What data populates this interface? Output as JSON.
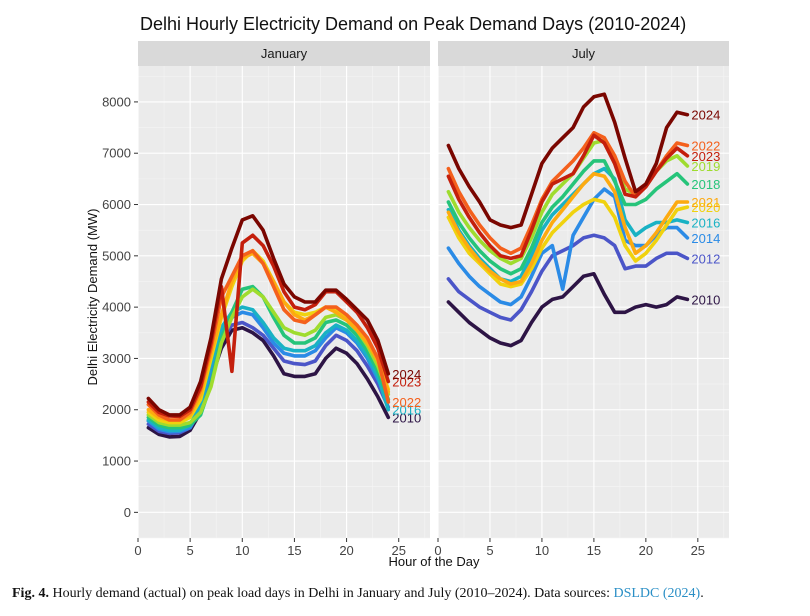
{
  "chart_data": {
    "type": "line",
    "title": "Delhi Hourly Electricity Demand on Peak Demand Days (2010-2024)",
    "xlabel": "Hour of the Day",
    "ylabel": "Delhi Electricity Demand (MW)",
    "xlim": [
      0,
      28
    ],
    "ylim": [
      -500,
      8700
    ],
    "x_ticks": [
      0,
      5,
      10,
      15,
      20,
      25
    ],
    "y_ticks": [
      0,
      1000,
      2000,
      3000,
      4000,
      5000,
      6000,
      7000,
      8000
    ],
    "x": [
      1,
      2,
      3,
      4,
      5,
      6,
      7,
      8,
      9,
      10,
      11,
      12,
      13,
      14,
      15,
      16,
      17,
      18,
      19,
      20,
      21,
      22,
      23,
      24
    ],
    "colors": {
      "2010": "#2d1445",
      "2012": "#4b55c8",
      "2014": "#2b8be6",
      "2016": "#19b2c4",
      "2018": "#26c47a",
      "2019": "#9fdc2e",
      "2020": "#f0d20e",
      "2021": "#fdaa10",
      "2022": "#f4601c",
      "2023": "#c41f0c",
      "2024": "#7a0600"
    },
    "panels": [
      {
        "name": "January",
        "series": [
          {
            "name": "2010",
            "label": "2010",
            "values": [
              1650,
              1520,
              1470,
              1480,
              1600,
              1950,
              2600,
              3200,
              3550,
              3600,
              3500,
              3350,
              3050,
              2700,
              2650,
              2650,
              2700,
              3000,
              3200,
              3100,
              2900,
              2600,
              2250,
              1850
            ]
          },
          {
            "name": "2012",
            "label": "",
            "values": [
              1720,
              1580,
              1540,
              1550,
              1650,
              2050,
              2750,
              3350,
              3650,
              3700,
              3600,
              3450,
              3200,
              2950,
              2900,
              2880,
              2950,
              3250,
              3450,
              3350,
              3150,
              2850,
              2500,
              2050
            ]
          },
          {
            "name": "2014",
            "label": "",
            "values": [
              1780,
              1620,
              1570,
              1580,
              1650,
              2000,
              2800,
              3500,
              3800,
              3900,
              3850,
              3600,
              3300,
              3100,
              3050,
              3050,
              3150,
              3400,
              3600,
              3500,
              3300,
              3000,
              2600,
              2150
            ]
          },
          {
            "name": "2016",
            "label": "2016",
            "values": [
              1800,
              1650,
              1600,
              1600,
              1700,
              2100,
              2900,
              3600,
              3900,
              4000,
              3950,
              3700,
              3400,
              3200,
              3150,
              3150,
              3250,
              3500,
              3650,
              3550,
              3350,
              3050,
              2650,
              2000
            ]
          },
          {
            "name": "2018",
            "label": "",
            "values": [
              1850,
              1700,
              1650,
              1650,
              1700,
              1900,
              2500,
              3400,
              3900,
              4350,
              4400,
              4200,
              3800,
              3450,
              3300,
              3300,
              3400,
              3700,
              3750,
              3650,
              3450,
              3150,
              2750,
              2200
            ]
          },
          {
            "name": "2019",
            "label": "",
            "values": [
              1900,
              1750,
              1700,
              1700,
              1750,
              1950,
              2450,
              3300,
              3800,
              4200,
              4350,
              4200,
              3900,
              3600,
              3500,
              3450,
              3550,
              3800,
              3850,
              3750,
              3550,
              3250,
              2850,
              2300
            ]
          },
          {
            "name": "2020",
            "label": "",
            "values": [
              1950,
              1800,
              1750,
              1750,
              1850,
              2200,
              3000,
              3800,
              4400,
              4900,
              5100,
              4900,
              4500,
              4100,
              3900,
              3850,
              3900,
              4000,
              3950,
              3800,
              3600,
              3350,
              2950,
              2400
            ]
          },
          {
            "name": "2021",
            "label": "",
            "values": [
              2000,
              1850,
              1800,
              1800,
              1900,
              2300,
              3100,
              3850,
              4500,
              4950,
              5050,
              4850,
              4500,
              4100,
              3850,
              3750,
              3850,
              4000,
              3900,
              3750,
              3550,
              3300,
              2950,
              2350
            ]
          },
          {
            "name": "2022",
            "label": "2022",
            "values": [
              2100,
              1900,
              1800,
              1800,
              1950,
              2400,
              3200,
              4200,
              4600,
              5000,
              5100,
              4850,
              4400,
              3950,
              3750,
              3700,
              3850,
              4000,
              4000,
              3850,
              3650,
              3400,
              3000,
              2150
            ]
          },
          {
            "name": "2023",
            "label": "2023",
            "values": [
              2150,
              1950,
              1880,
              1870,
              2000,
              2450,
              3300,
              4400,
              2750,
              5250,
              5400,
              5200,
              4800,
              4300,
              4000,
              3950,
              4050,
              4300,
              4300,
              4100,
              3900,
              3600,
              3200,
              2550
            ]
          },
          {
            "name": "2024",
            "label": "2024",
            "values": [
              2220,
              2000,
              1900,
              1900,
              2050,
              2550,
              3400,
              4550,
              5150,
              5700,
              5780,
              5500,
              4950,
              4450,
              4200,
              4100,
              4100,
              4330,
              4330,
              4150,
              3950,
              3750,
              3350,
              2700
            ]
          }
        ]
      },
      {
        "name": "July",
        "series": [
          {
            "name": "2010",
            "label": "2010",
            "values": [
              4100,
              3900,
              3700,
              3550,
              3400,
              3300,
              3250,
              3350,
              3700,
              4000,
              4150,
              4200,
              4400,
              4600,
              4650,
              4250,
              3900,
              3900,
              4000,
              4050,
              4000,
              4050,
              4200,
              4150
            ]
          },
          {
            "name": "2012",
            "label": "2012",
            "values": [
              4550,
              4300,
              4150,
              4000,
              3900,
              3800,
              3750,
              3950,
              4300,
              4700,
              5000,
              5100,
              5200,
              5350,
              5400,
              5350,
              5200,
              4750,
              4800,
              4800,
              4950,
              5050,
              5050,
              4950
            ]
          },
          {
            "name": "2014",
            "label": "2014",
            "values": [
              5150,
              4850,
              4600,
              4400,
              4250,
              4100,
              4050,
              4200,
              4600,
              5050,
              5200,
              4350,
              5400,
              5750,
              6100,
              6300,
              6150,
              5300,
              5200,
              5200,
              5400,
              5550,
              5550,
              5350
            ]
          },
          {
            "name": "2016",
            "label": "2016",
            "values": [
              5900,
              5500,
              5200,
              4950,
              4750,
              4550,
              4500,
              4600,
              5000,
              5500,
              5800,
              6000,
              6200,
              6400,
              6600,
              6700,
              6500,
              5700,
              5400,
              5550,
              5650,
              5650,
              5700,
              5650
            ]
          },
          {
            "name": "2018",
            "label": "2018",
            "values": [
              6050,
              5650,
              5350,
              5100,
              4900,
              4750,
              4650,
              4750,
              5150,
              5650,
              5950,
              6150,
              6400,
              6650,
              6850,
              6850,
              6450,
              6000,
              6000,
              6100,
              6300,
              6450,
              6600,
              6400
            ]
          },
          {
            "name": "2019",
            "label": "2019",
            "values": [
              6250,
              5850,
              5550,
              5300,
              5100,
              4950,
              4850,
              4950,
              5350,
              5850,
              6200,
              6400,
              6600,
              6900,
              7200,
              7250,
              6800,
              6300,
              6200,
              6400,
              6650,
              6850,
              6950,
              6750
            ]
          },
          {
            "name": "2020",
            "label": "2020",
            "values": [
              5750,
              5350,
              5050,
              4850,
              4650,
              4450,
              4400,
              4450,
              4750,
              5150,
              5450,
              5650,
              5850,
              6000,
              6100,
              6050,
              5750,
              5200,
              4900,
              5050,
              5300,
              5600,
              5900,
              5950
            ]
          },
          {
            "name": "2021",
            "label": "2021",
            "values": [
              5850,
              5450,
              5150,
              4900,
              4700,
              4550,
              4450,
              4500,
              4850,
              5300,
              5650,
              5900,
              6150,
              6400,
              6600,
              6550,
              6250,
              5550,
              5050,
              5200,
              5450,
              5750,
              6050,
              6050
            ]
          },
          {
            "name": "2022",
            "label": "2022",
            "values": [
              6700,
              6250,
              5900,
              5600,
              5350,
              5150,
              5050,
              5150,
              5600,
              6100,
              6450,
              6650,
              6850,
              7100,
              7400,
              7300,
              6950,
              6450,
              6150,
              6350,
              6650,
              6950,
              7200,
              7150
            ]
          },
          {
            "name": "2023",
            "label": "2023",
            "values": [
              6550,
              6100,
              5750,
              5450,
              5200,
              5000,
              4950,
              5000,
              5500,
              6050,
              6400,
              6500,
              6600,
              6950,
              7350,
              7200,
              6800,
              6200,
              6150,
              6350,
              6650,
              6900,
              7100,
              6950
            ]
          },
          {
            "name": "2024",
            "label": "2024",
            "values": [
              7150,
              6700,
              6350,
              6050,
              5700,
              5600,
              5550,
              5600,
              6200,
              6800,
              7100,
              7300,
              7500,
              7900,
              8100,
              8150,
              7600,
              6900,
              6250,
              6400,
              6800,
              7500,
              7800,
              7750
            ]
          }
        ]
      }
    ]
  },
  "caption": {
    "label": "Fig. 4.",
    "text": "Hourly demand (actual) on peak load days in Delhi in January and July (2010–2024). Data sources:",
    "source": "DSLDC (2024)",
    "end": "."
  }
}
